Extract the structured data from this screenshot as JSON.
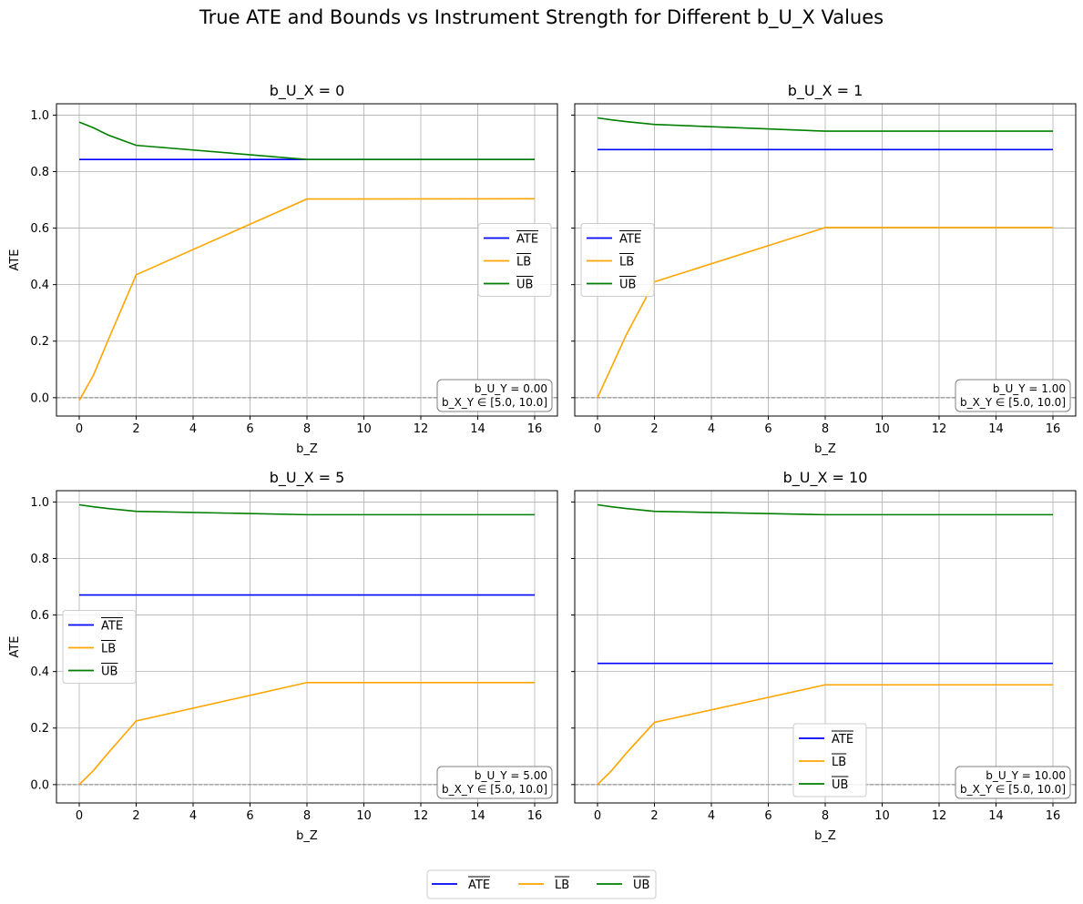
{
  "chart_data": {
    "type": "line",
    "title": "True ATE and Bounds vs Instrument Strength for Different b_U_X Values",
    "shared_x": [
      0,
      0.5,
      1,
      2,
      8,
      16
    ],
    "xlabel": "b_Z",
    "ylabel": "ATE",
    "xlim": [
      -0.8,
      16.8
    ],
    "ylim": [
      -0.065,
      1.04
    ],
    "xticks": [
      0,
      2,
      4,
      6,
      8,
      10,
      12,
      14,
      16
    ],
    "yticks": [
      0.0,
      0.2,
      0.4,
      0.6,
      0.8,
      1.0
    ],
    "grid": true,
    "zero_line": 0,
    "series_names": [
      "ATE",
      "LB",
      "UB"
    ],
    "colors": {
      "ATE": "#0000ff",
      "LB": "#ffa500",
      "UB": "#008000",
      "zero_line": "#808080"
    },
    "figure_legend": {
      "placement": "bottom-center",
      "entries": [
        "ATE",
        "LB",
        "UB"
      ]
    },
    "panels": [
      {
        "title": "b_U_X = 0",
        "legend_position": "center-right",
        "annotation": [
          "b_U_Y = 0.00",
          "b_X_Y ∈ [5.0, 10.0]"
        ],
        "series": [
          {
            "name": "ATE",
            "values": [
              0.843,
              0.843,
              0.843,
              0.843,
              0.843,
              0.843
            ]
          },
          {
            "name": "LB",
            "values": [
              -0.01,
              0.08,
              0.2,
              0.435,
              0.703,
              0.704
            ]
          },
          {
            "name": "UB",
            "values": [
              0.975,
              0.955,
              0.93,
              0.893,
              0.843,
              0.843
            ]
          }
        ]
      },
      {
        "title": "b_U_X = 1",
        "legend_position": "center-left",
        "annotation": [
          "b_U_Y = 1.00",
          "b_X_Y ∈ [5.0, 10.0]"
        ],
        "series": [
          {
            "name": "ATE",
            "values": [
              0.878,
              0.878,
              0.878,
              0.878,
              0.878,
              0.878
            ]
          },
          {
            "name": "LB",
            "values": [
              0.0,
              0.11,
              0.22,
              0.41,
              0.602,
              0.602
            ]
          },
          {
            "name": "UB",
            "values": [
              0.99,
              0.983,
              0.977,
              0.967,
              0.943,
              0.943
            ]
          }
        ]
      },
      {
        "title": "b_U_X = 5",
        "legend_position": "center-left",
        "annotation": [
          "b_U_Y = 5.00",
          "b_X_Y ∈ [5.0, 10.0]"
        ],
        "series": [
          {
            "name": "ATE",
            "values": [
              0.671,
              0.671,
              0.671,
              0.671,
              0.671,
              0.671
            ]
          },
          {
            "name": "LB",
            "values": [
              0.0,
              0.05,
              0.11,
              0.225,
              0.361,
              0.361
            ]
          },
          {
            "name": "UB",
            "values": [
              0.99,
              0.983,
              0.977,
              0.967,
              0.955,
              0.955
            ]
          }
        ]
      },
      {
        "title": "b_U_X = 10",
        "legend_position": "lower-center",
        "annotation": [
          "b_U_Y = 10.00",
          "b_X_Y ∈ [5.0, 10.0]"
        ],
        "series": [
          {
            "name": "ATE",
            "values": [
              0.429,
              0.429,
              0.429,
              0.429,
              0.429,
              0.429
            ]
          },
          {
            "name": "LB",
            "values": [
              0.0,
              0.05,
              0.11,
              0.22,
              0.353,
              0.353
            ]
          },
          {
            "name": "UB",
            "values": [
              0.99,
              0.983,
              0.977,
              0.967,
              0.955,
              0.955
            ]
          }
        ]
      }
    ]
  }
}
